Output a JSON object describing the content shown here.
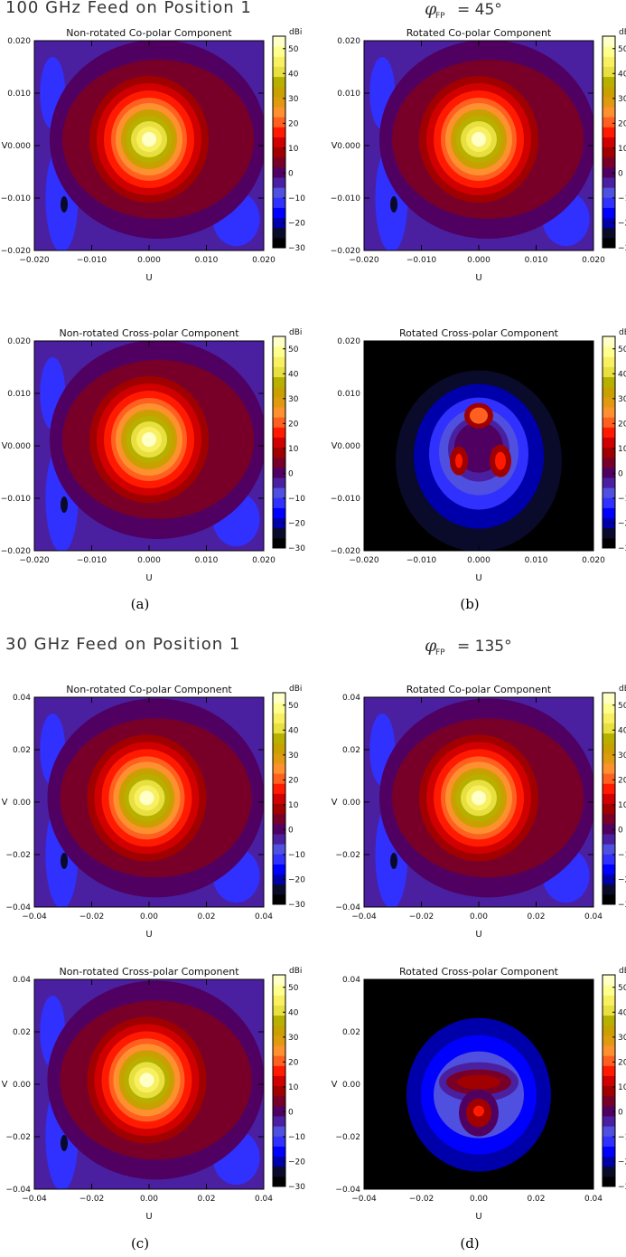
{
  "sections": [
    {
      "header": "100 GHz Feed on Position 1",
      "phi_label": "φ",
      "phi_sub": "FP",
      "phi_value": "= 45°",
      "caption_left": "(a)",
      "caption_right": "(b)",
      "ticks": [
        "−0.020",
        "−0.010",
        "0.000",
        "0.010",
        "0.020"
      ]
    },
    {
      "header": "30 GHz Feed on Position 1",
      "phi_label": "φ",
      "phi_sub": "FP",
      "phi_value": "= 135°",
      "caption_left": "(c)",
      "caption_right": "(d)",
      "ticks": [
        "−0.04",
        "−0.02",
        "0.00",
        "0.02",
        "0.04"
      ]
    }
  ],
  "colorbar": {
    "unit": "dBi",
    "ticks": [
      "50",
      "40",
      "30",
      "20",
      "10",
      "0",
      "−10",
      "−20",
      "−30"
    ],
    "levels": [
      "#000000",
      "#0a0a2a",
      "#0000aa",
      "#0000ff",
      "#3030ff",
      "#5050e0",
      "#4a20a0",
      "#500060",
      "#780028",
      "#a00000",
      "#d00000",
      "#ff1a00",
      "#ff6020",
      "#ff9030",
      "#e09a10",
      "#c8a000",
      "#b8b000",
      "#e8e040",
      "#f8f060",
      "#ffff90",
      "#ffffc8"
    ]
  },
  "chart_data": [
    {
      "type": "heatmap",
      "panel": "a-top",
      "title": "Non-rotated Co-polar Component",
      "xlabel": "U",
      "ylabel": "V",
      "xlim": [
        -0.02,
        0.02
      ],
      "ylim": [
        -0.02,
        0.02
      ],
      "zlim": [
        -30,
        55
      ],
      "zunit": "dBi",
      "peak": {
        "u": 0.0,
        "v": 0.0,
        "value": 55
      }
    },
    {
      "type": "heatmap",
      "panel": "b-top",
      "title": "Rotated Co-polar Component",
      "xlabel": "U",
      "ylabel": "V",
      "xlim": [
        -0.02,
        0.02
      ],
      "ylim": [
        -0.02,
        0.02
      ],
      "zlim": [
        -30,
        55
      ],
      "zunit": "dBi",
      "peak": {
        "u": 0.0,
        "v": 0.0,
        "value": 55
      }
    },
    {
      "type": "heatmap",
      "panel": "a-bottom",
      "title": "Non-rotated Cross-polar Component",
      "xlabel": "U",
      "ylabel": "V",
      "xlim": [
        -0.02,
        0.02
      ],
      "ylim": [
        -0.02,
        0.02
      ],
      "zlim": [
        -30,
        55
      ],
      "zunit": "dBi",
      "peak": {
        "u": 0.0,
        "v": 0.0,
        "value": 55
      }
    },
    {
      "type": "heatmap",
      "panel": "b-bottom",
      "title": "Rotated Cross-polar Component",
      "xlabel": "U",
      "ylabel": "V",
      "xlim": [
        -0.02,
        0.02
      ],
      "ylim": [
        -0.02,
        0.02
      ],
      "zlim": [
        -30,
        55
      ],
      "zunit": "dBi",
      "peak": {
        "u": 0.0,
        "v": 0.005,
        "value": 25
      }
    },
    {
      "type": "heatmap",
      "panel": "c-top",
      "title": "Non-rotated Co-polar Component",
      "xlabel": "U",
      "ylabel": "V",
      "xlim": [
        -0.04,
        0.04
      ],
      "ylim": [
        -0.04,
        0.04
      ],
      "zlim": [
        -30,
        55
      ],
      "zunit": "dBi",
      "peak": {
        "u": 0.0,
        "v": 0.0,
        "value": 55
      }
    },
    {
      "type": "heatmap",
      "panel": "d-top",
      "title": "Rotated Co-polar Component",
      "xlabel": "U",
      "ylabel": "V",
      "xlim": [
        -0.04,
        0.04
      ],
      "ylim": [
        -0.04,
        0.04
      ],
      "zlim": [
        -30,
        55
      ],
      "zunit": "dBi",
      "peak": {
        "u": 0.0,
        "v": 0.0,
        "value": 55
      }
    },
    {
      "type": "heatmap",
      "panel": "c-bottom",
      "title": "Non-rotated Cross-polar Component",
      "xlabel": "U",
      "ylabel": "V",
      "xlim": [
        -0.04,
        0.04
      ],
      "ylim": [
        -0.04,
        0.04
      ],
      "zlim": [
        -30,
        55
      ],
      "zunit": "dBi",
      "peak": {
        "u": 0.0,
        "v": 0.0,
        "value": 55
      }
    },
    {
      "type": "heatmap",
      "panel": "d-bottom",
      "title": "Rotated Cross-polar Component",
      "xlabel": "U",
      "ylabel": "V",
      "xlim": [
        -0.04,
        0.04
      ],
      "ylim": [
        -0.04,
        0.04
      ],
      "zlim": [
        -30,
        55
      ],
      "zunit": "dBi",
      "peak": {
        "u": 0.0,
        "v": -0.007,
        "value": 20
      }
    }
  ]
}
